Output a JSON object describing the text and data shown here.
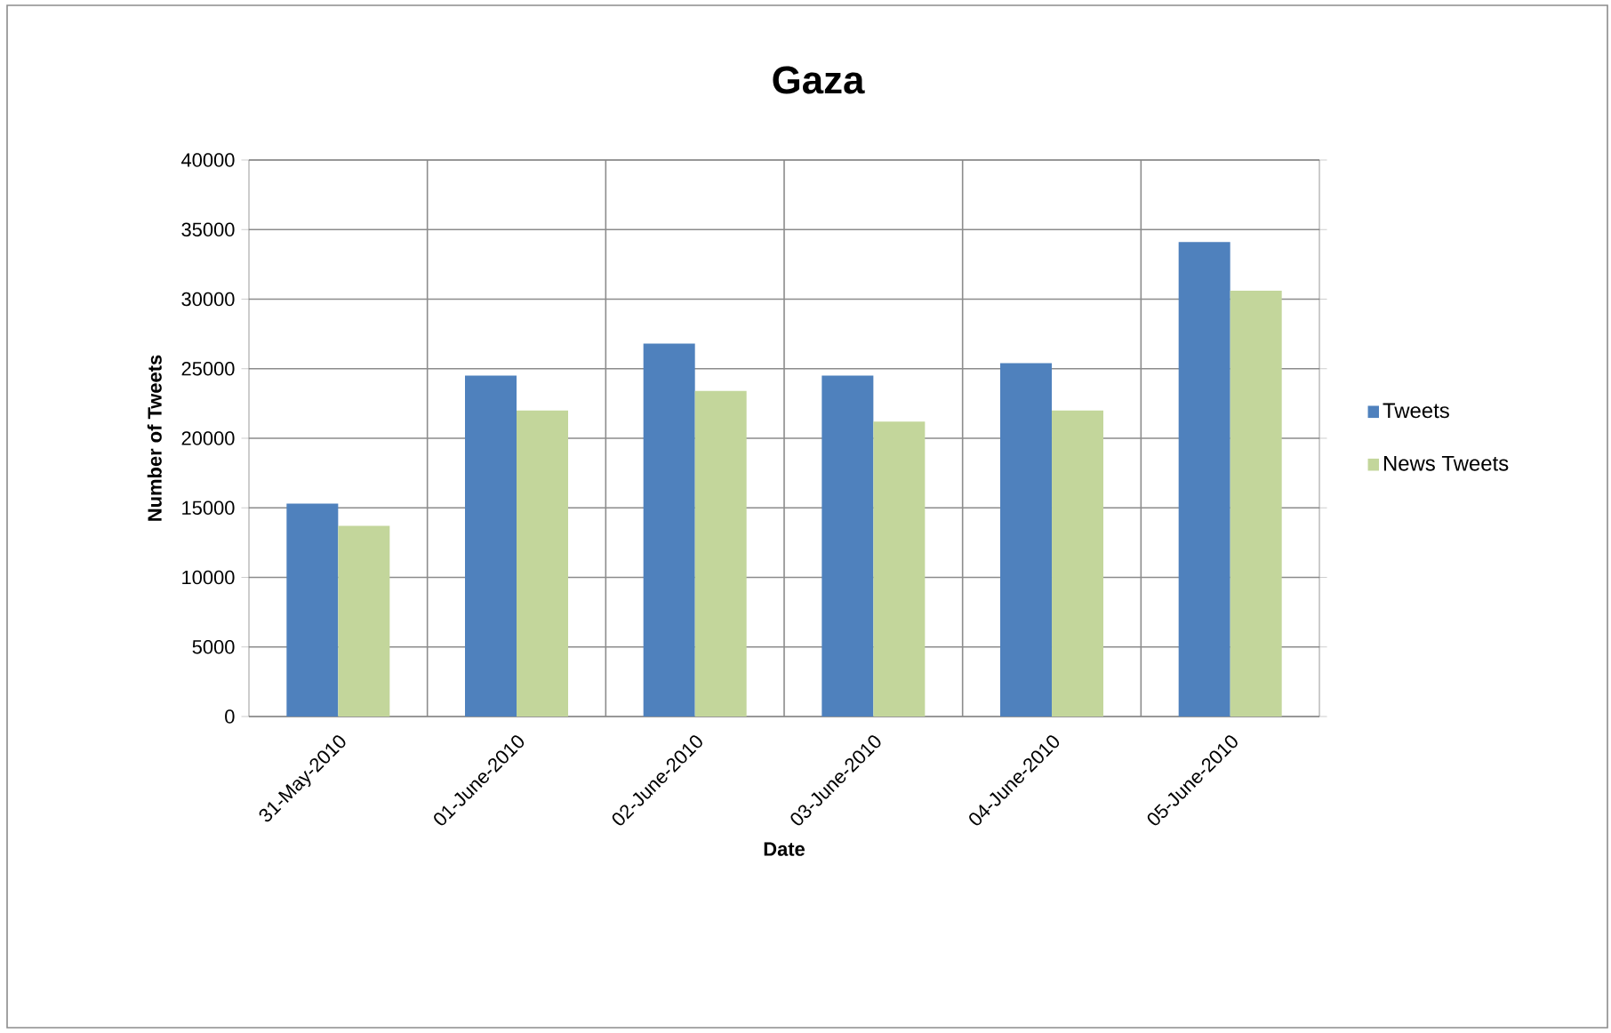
{
  "chart_data": {
    "type": "bar",
    "title": "Gaza",
    "xlabel": "Date",
    "ylabel": "Number of Tweets",
    "categories": [
      "31-May-2010",
      "01-June-2010",
      "02-June-2010",
      "03-June-2010",
      "04-June-2010",
      "05-June-2010"
    ],
    "series": [
      {
        "name": "Tweets",
        "color": "#4f81bd",
        "values": [
          15300,
          24500,
          26800,
          24500,
          25400,
          34100
        ]
      },
      {
        "name": "News Tweets",
        "color": "#c3d69b",
        "values": [
          13700,
          22000,
          23400,
          21200,
          22000,
          30600
        ]
      }
    ],
    "ylim": [
      0,
      40000
    ],
    "yticks": [
      0,
      5000,
      10000,
      15000,
      20000,
      25000,
      30000,
      35000,
      40000
    ],
    "grid": true,
    "legend": "right"
  }
}
